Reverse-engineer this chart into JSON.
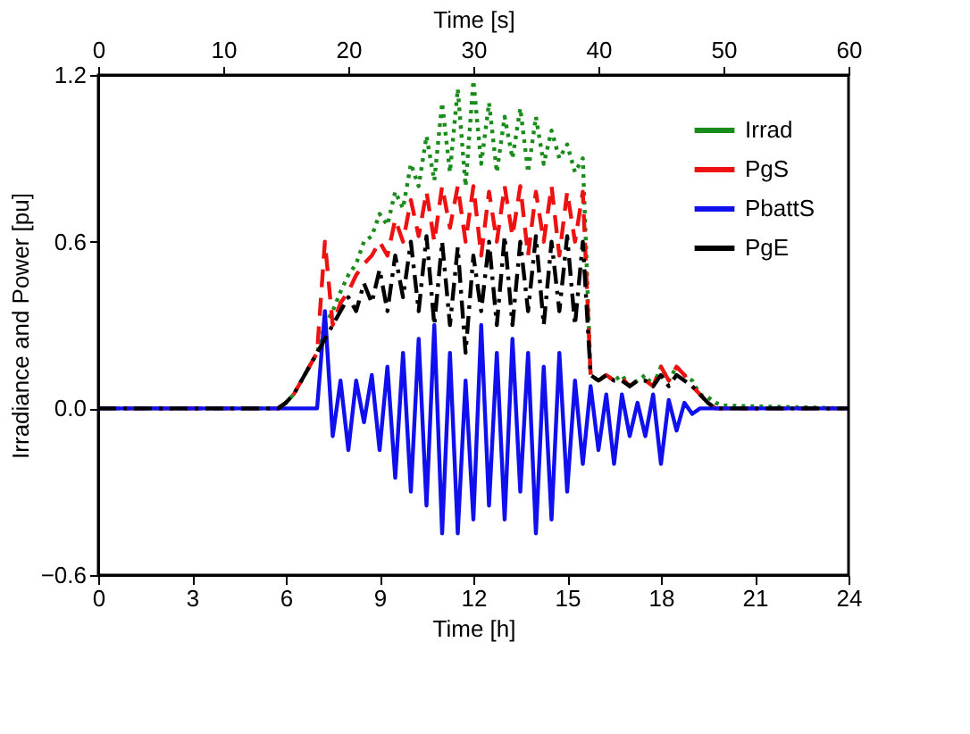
{
  "chart_data": {
    "type": "line",
    "xlabel": "Time [h]",
    "x2label": "Time [s]",
    "ylabel": "Irradiance and Power [pu]",
    "x": [
      0,
      5.75,
      6,
      6.25,
      6.5,
      6.75,
      7,
      7.25,
      7.5,
      7.75,
      8,
      8.25,
      8.5,
      8.75,
      9,
      9.25,
      9.5,
      9.75,
      10,
      10.25,
      10.5,
      10.75,
      11,
      11.25,
      11.5,
      11.75,
      12,
      12.25,
      12.5,
      12.75,
      13,
      13.25,
      13.5,
      13.75,
      14,
      14.25,
      14.5,
      14.75,
      15,
      15.25,
      15.5,
      15.75,
      16,
      16.25,
      16.5,
      16.75,
      17,
      17.25,
      17.5,
      17.75,
      18,
      18.25,
      18.5,
      18.75,
      19,
      19.25,
      19.5,
      19.75,
      20,
      24
    ],
    "series": [
      {
        "name": "Irrad",
        "color": "#1a8c1a",
        "line_style": "dotted",
        "values": [
          0,
          0,
          0.02,
          0.05,
          0.1,
          0.15,
          0.2,
          0.3,
          0.35,
          0.42,
          0.48,
          0.52,
          0.6,
          0.62,
          0.7,
          0.66,
          0.78,
          0.72,
          0.88,
          0.8,
          0.98,
          0.82,
          1.1,
          0.85,
          1.15,
          0.8,
          1.18,
          0.88,
          1.1,
          0.85,
          1.05,
          0.9,
          1.08,
          0.85,
          1.05,
          0.88,
          1.0,
          0.9,
          0.95,
          0.85,
          0.9,
          0.12,
          0.1,
          0.12,
          0.1,
          0.12,
          0.08,
          0.1,
          0.12,
          0.08,
          0.15,
          0.1,
          0.15,
          0.12,
          0.1,
          0.05,
          0.04,
          0.02,
          0.01,
          0
        ]
      },
      {
        "name": "PgS",
        "color": "#ee1111",
        "line_style": "dashed",
        "values": [
          0,
          0,
          0.02,
          0.05,
          0.1,
          0.15,
          0.2,
          0.6,
          0.3,
          0.38,
          0.42,
          0.48,
          0.52,
          0.55,
          0.6,
          0.55,
          0.68,
          0.6,
          0.75,
          0.62,
          0.78,
          0.6,
          0.8,
          0.65,
          0.8,
          0.6,
          0.8,
          0.55,
          0.78,
          0.6,
          0.8,
          0.62,
          0.8,
          0.55,
          0.78,
          0.6,
          0.8,
          0.55,
          0.78,
          0.6,
          0.78,
          0.12,
          0.1,
          0.12,
          0.1,
          0.11,
          0.08,
          0.1,
          0.1,
          0.08,
          0.15,
          0.1,
          0.15,
          0.12,
          0.08,
          0.05,
          0.02,
          0,
          0,
          0
        ]
      },
      {
        "name": "PbattS",
        "color": "#1010ee",
        "line_style": "solid",
        "values": [
          0,
          0,
          0,
          0,
          0,
          0,
          0,
          0.35,
          -0.1,
          0.1,
          -0.15,
          0.1,
          -0.05,
          0.12,
          -0.15,
          0.15,
          -0.25,
          0.2,
          -0.3,
          0.25,
          -0.35,
          0.3,
          -0.45,
          0.2,
          -0.45,
          0.1,
          -0.4,
          0.3,
          -0.35,
          0.2,
          -0.4,
          0.25,
          -0.3,
          0.2,
          -0.45,
          0.15,
          -0.4,
          0.2,
          -0.3,
          0.1,
          -0.2,
          0.08,
          -0.15,
          0.05,
          -0.2,
          0.05,
          -0.1,
          0.02,
          -0.1,
          0.05,
          -0.2,
          0.03,
          -0.08,
          0.02,
          -0.02,
          0,
          0,
          0,
          0,
          0
        ]
      },
      {
        "name": "PgE",
        "color": "#000000",
        "line_style": "dashdot",
        "values": [
          0,
          0,
          0.02,
          0.05,
          0.1,
          0.15,
          0.2,
          0.25,
          0.3,
          0.35,
          0.4,
          0.35,
          0.45,
          0.38,
          0.5,
          0.35,
          0.55,
          0.4,
          0.6,
          0.35,
          0.62,
          0.3,
          0.6,
          0.3,
          0.58,
          0.2,
          0.55,
          0.35,
          0.6,
          0.3,
          0.62,
          0.3,
          0.6,
          0.35,
          0.62,
          0.3,
          0.6,
          0.35,
          0.62,
          0.3,
          0.6,
          0.12,
          0.1,
          0.12,
          0.1,
          0.1,
          0.08,
          0.1,
          0.1,
          0.08,
          0.12,
          0.08,
          0.12,
          0.1,
          0.08,
          0.05,
          0.02,
          0,
          0,
          0
        ]
      }
    ],
    "xlim": [
      0,
      24
    ],
    "xticks": [
      0,
      3,
      6,
      9,
      12,
      15,
      18,
      21,
      24
    ],
    "x2lim": [
      0,
      60
    ],
    "x2ticks": [
      0,
      10,
      20,
      30,
      40,
      50,
      60
    ],
    "ylim": [
      -0.6,
      1.2
    ],
    "yticks": [
      -0.6,
      {
        "value": 0,
        "label": "0.0"
      },
      0.6,
      1.2
    ],
    "grid": false,
    "legend": "top right",
    "marker": "none"
  }
}
